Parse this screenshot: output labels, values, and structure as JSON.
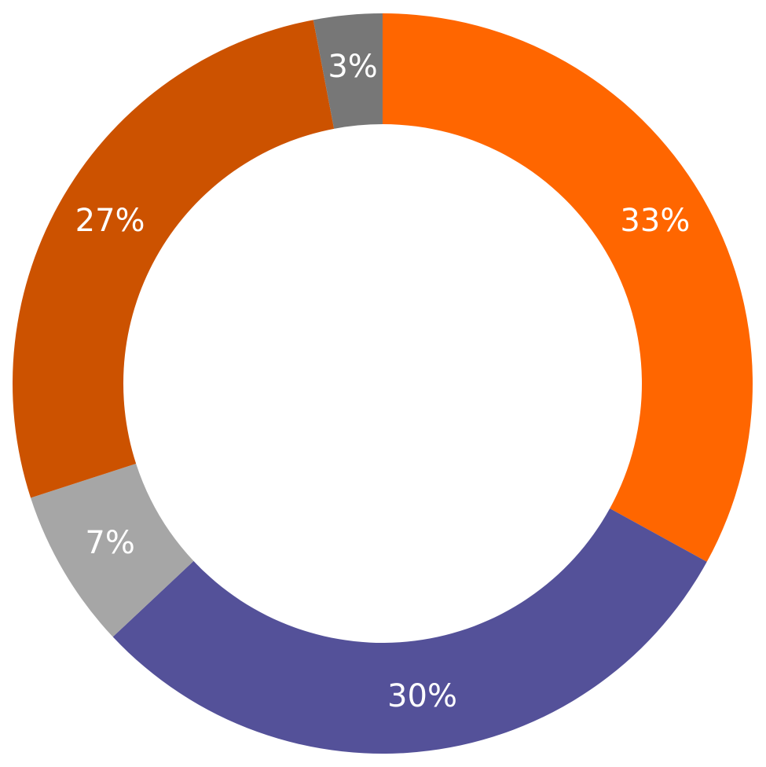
{
  "chart_data": {
    "type": "donut",
    "values": [
      33,
      30,
      7,
      27,
      3
    ],
    "value_labels": [
      "33%",
      "30%",
      "7%",
      "27%",
      "3%"
    ],
    "colors": [
      "#ff6600",
      "#545199",
      "#a6a6a6",
      "#cc5200",
      "#777777"
    ]
  }
}
